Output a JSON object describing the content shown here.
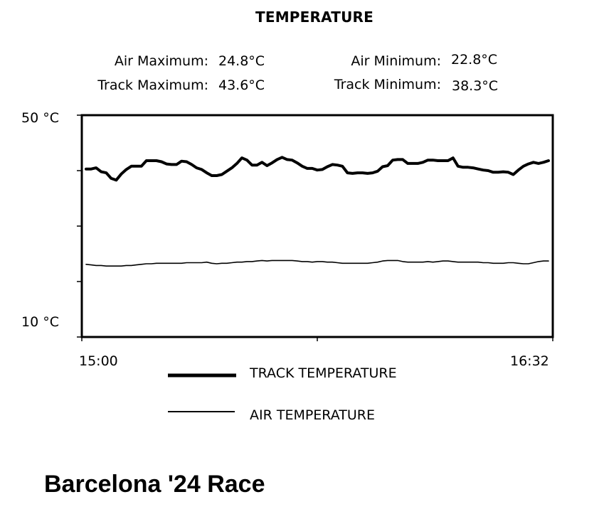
{
  "chart_data": {
    "type": "line",
    "title": "TEMPERATURE",
    "stats": {
      "air_max_label": "Air Maximum:",
      "air_max_value": "24.8°C",
      "air_min_label": "Air Minimum:",
      "air_min_value": "22.8°C",
      "track_max_label": "Track Maximum:",
      "track_max_value": "43.6°C",
      "track_min_label": "Track Minimum:",
      "track_min_value": "38.3°C"
    },
    "y_tick_labels": {
      "top": "50 °C",
      "bottom": "10 °C"
    },
    "ylim": [
      10,
      50
    ],
    "y_ticks": [
      10,
      20,
      30,
      40,
      50
    ],
    "x_tick_labels": {
      "start": "15:00",
      "end": "16:32"
    },
    "xlim": [
      0,
      92
    ],
    "x_ticks": [
      0,
      46,
      92
    ],
    "grid": false,
    "legend_position": "bottom",
    "x": [
      0,
      1,
      2,
      3,
      4,
      5,
      6,
      7,
      8,
      9,
      10,
      11,
      12,
      13,
      14,
      15,
      16,
      17,
      18,
      19,
      20,
      21,
      22,
      23,
      24,
      25,
      26,
      27,
      28,
      29,
      30,
      31,
      32,
      33,
      34,
      35,
      36,
      37,
      38,
      39,
      40,
      41,
      42,
      43,
      44,
      45,
      46,
      47,
      48,
      49,
      50,
      51,
      52,
      53,
      54,
      55,
      56,
      57,
      58,
      59,
      60,
      61,
      62,
      63,
      64,
      65,
      66,
      67,
      68,
      69,
      70,
      71,
      72,
      73,
      74,
      75,
      76,
      77,
      78,
      79,
      80,
      81,
      82,
      83,
      84,
      85,
      86,
      87,
      88,
      89,
      90,
      91,
      92
    ],
    "series": [
      {
        "name": "TRACK TEMPERATURE",
        "style": "thick",
        "color": "#000000",
        "values": [
          40.3,
          40.3,
          40.5,
          39.8,
          39.6,
          38.6,
          38.3,
          39.4,
          40.2,
          40.8,
          40.8,
          40.8,
          41.8,
          41.8,
          41.8,
          41.6,
          41.2,
          41.1,
          41.1,
          41.7,
          41.6,
          41.1,
          40.5,
          40.2,
          39.6,
          39.1,
          39.1,
          39.3,
          39.9,
          40.5,
          41.3,
          42.3,
          41.9,
          41.0,
          41.0,
          41.5,
          40.9,
          41.4,
          42.0,
          42.4,
          42.0,
          41.9,
          41.4,
          40.8,
          40.4,
          40.4,
          40.1,
          40.2,
          40.7,
          41.1,
          41.0,
          40.8,
          39.6,
          39.5,
          39.6,
          39.6,
          39.5,
          39.6,
          39.9,
          40.7,
          40.9,
          41.9,
          42.0,
          42.0,
          41.3,
          41.3,
          41.3,
          41.5,
          41.9,
          41.9,
          41.8,
          41.8,
          41.8,
          42.3,
          40.8,
          40.6,
          40.6,
          40.5,
          40.3,
          40.1,
          40.0,
          39.7,
          39.7,
          39.8,
          39.7,
          39.3,
          40.1,
          40.8,
          41.2,
          41.5,
          41.3,
          41.5,
          41.8
        ]
      },
      {
        "name": "AIR TEMPERATURE",
        "style": "thin",
        "color": "#000000",
        "values": [
          23.1,
          23.0,
          22.9,
          22.9,
          22.8,
          22.8,
          22.8,
          22.8,
          22.9,
          22.9,
          23.0,
          23.1,
          23.2,
          23.2,
          23.3,
          23.3,
          23.3,
          23.3,
          23.3,
          23.3,
          23.4,
          23.4,
          23.4,
          23.4,
          23.5,
          23.3,
          23.2,
          23.3,
          23.3,
          23.4,
          23.5,
          23.5,
          23.6,
          23.6,
          23.7,
          23.8,
          23.7,
          23.8,
          23.8,
          23.8,
          23.8,
          23.8,
          23.7,
          23.6,
          23.6,
          23.5,
          23.6,
          23.6,
          23.5,
          23.5,
          23.4,
          23.3,
          23.3,
          23.3,
          23.3,
          23.3,
          23.3,
          23.4,
          23.5,
          23.7,
          23.8,
          23.8,
          23.8,
          23.6,
          23.5,
          23.5,
          23.5,
          23.5,
          23.6,
          23.5,
          23.6,
          23.7,
          23.7,
          23.6,
          23.5,
          23.5,
          23.5,
          23.5,
          23.5,
          23.4,
          23.4,
          23.3,
          23.3,
          23.3,
          23.4,
          23.4,
          23.3,
          23.2,
          23.2,
          23.4,
          23.6,
          23.7,
          23.7
        ]
      }
    ]
  },
  "caption": "Barcelona '24 Race"
}
